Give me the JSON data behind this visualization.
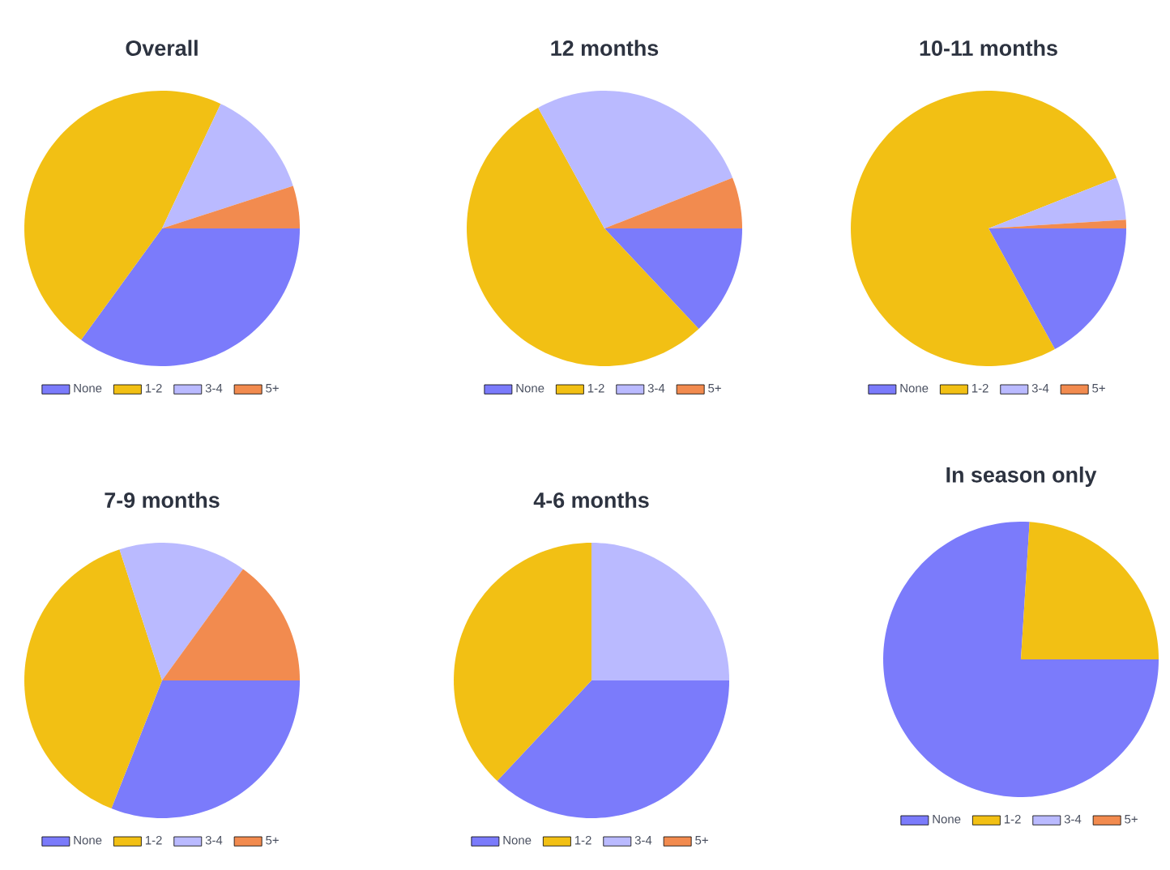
{
  "chart_data": [
    {
      "type": "pie",
      "title": "Overall",
      "categories": [
        "None",
        "1-2",
        "3-4",
        "5+"
      ],
      "values": [
        35,
        47,
        13,
        5
      ],
      "colors": [
        "#7b7bfb",
        "#f2c014",
        "#babaff",
        "#f28b4f"
      ],
      "legend": "bottom"
    },
    {
      "type": "pie",
      "title": "12 months",
      "categories": [
        "None",
        "1-2",
        "3-4",
        "5+"
      ],
      "values": [
        13,
        54,
        27,
        6
      ],
      "colors": [
        "#7b7bfb",
        "#f2c014",
        "#babaff",
        "#f28b4f"
      ],
      "legend": "bottom"
    },
    {
      "type": "pie",
      "title": "10-11 months",
      "categories": [
        "None",
        "1-2",
        "3-4",
        "5+"
      ],
      "values": [
        17,
        77,
        5,
        1
      ],
      "colors": [
        "#7b7bfb",
        "#f2c014",
        "#babaff",
        "#f28b4f"
      ],
      "legend": "bottom"
    },
    {
      "type": "pie",
      "title": "7-9 months",
      "categories": [
        "None",
        "1-2",
        "3-4",
        "5+"
      ],
      "values": [
        31,
        39,
        15,
        15
      ],
      "colors": [
        "#7b7bfb",
        "#f2c014",
        "#babaff",
        "#f28b4f"
      ],
      "legend": "bottom"
    },
    {
      "type": "pie",
      "title": "4-6 months",
      "categories": [
        "None",
        "1-2",
        "3-4",
        "5+"
      ],
      "values": [
        37,
        38,
        25,
        0
      ],
      "colors": [
        "#7b7bfb",
        "#f2c014",
        "#babaff",
        "#f28b4f"
      ],
      "legend": "bottom"
    },
    {
      "type": "pie",
      "title": "In season only",
      "categories": [
        "None",
        "1-2",
        "3-4",
        "5+"
      ],
      "values": [
        76,
        24,
        0,
        0
      ],
      "colors": [
        "#7b7bfb",
        "#f2c014",
        "#babaff",
        "#f28b4f"
      ],
      "legend": "bottom"
    }
  ]
}
